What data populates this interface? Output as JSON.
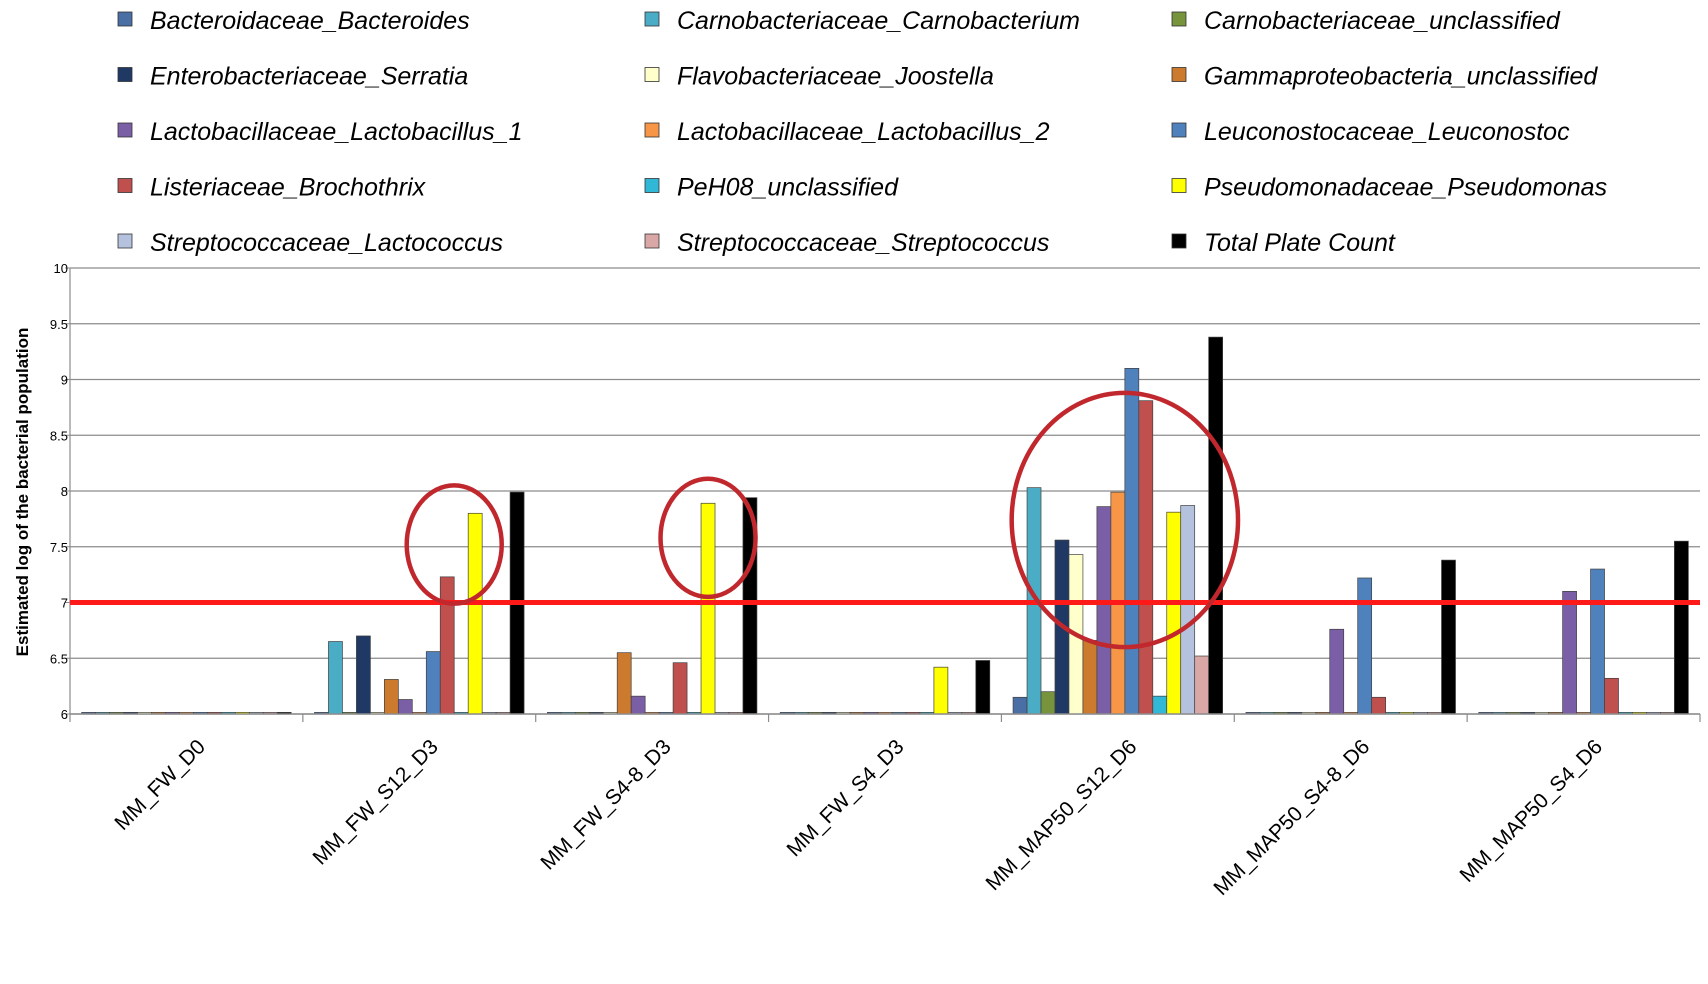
{
  "chart_data": {
    "type": "bar",
    "title": "",
    "xlabel": "",
    "ylabel": "Estimated log of the bacterial population",
    "ylim": [
      6,
      10
    ],
    "yticks": [
      6,
      6.5,
      7,
      7.5,
      8,
      8.5,
      9,
      9.5,
      10
    ],
    "ytick_suffix": "",
    "grid": true,
    "legend_position": "top",
    "threshold": {
      "value": 7,
      "color": "#ff1a1a"
    },
    "categories": [
      "MM_FW_D0",
      "MM_FW_S12_D3",
      "MM_FW_S4-8_D3",
      "MM_FW_S4_D3",
      "MM_MAP50_S12_D6",
      "MM_MAP50_S4-8_D6",
      "MM_MAP50_S4_D6"
    ],
    "series": [
      {
        "name": "Bacteroidaceae_Bacteroides",
        "color": "#4a6fa5",
        "values": [
          6,
          6,
          6,
          6,
          6.15,
          6,
          6
        ]
      },
      {
        "name": "Carnobacteriaceae_Carnobacterium",
        "color": "#4bacc6",
        "values": [
          6,
          6.65,
          6,
          6,
          8.03,
          6,
          6
        ]
      },
      {
        "name": "Carnobacteriaceae_unclassified",
        "color": "#77933c",
        "values": [
          6,
          6,
          6,
          6,
          6.2,
          6,
          6
        ]
      },
      {
        "name": "Enterobacteriaceae_Serratia",
        "color": "#1f3864",
        "values": [
          6,
          6.7,
          6,
          6,
          7.56,
          6,
          6
        ]
      },
      {
        "name": "Flavobacteriaceae_Joostella",
        "color": "#ffffcc",
        "values": [
          6,
          6,
          6,
          6,
          7.43,
          6,
          6
        ]
      },
      {
        "name": "Gammaproteobacteria_unclassified",
        "color": "#cc7a2e",
        "values": [
          6,
          6.31,
          6.55,
          6,
          6.66,
          6,
          6
        ]
      },
      {
        "name": "Lactobacillaceae_Lactobacillus_1",
        "color": "#7b5fa6",
        "values": [
          6,
          6.13,
          6.16,
          6,
          7.86,
          6.76,
          7.1
        ]
      },
      {
        "name": "Lactobacillaceae_Lactobacillus_2",
        "color": "#f79646",
        "values": [
          6,
          6,
          6,
          6,
          7.99,
          6,
          6
        ]
      },
      {
        "name": "Leuconostocaceae_Leuconostoc",
        "color": "#4f81bd",
        "values": [
          6,
          6.56,
          6,
          6,
          9.1,
          7.22,
          7.3
        ]
      },
      {
        "name": "Listeriaceae_Brochothrix",
        "color": "#c0504d",
        "values": [
          6,
          7.23,
          6.46,
          6,
          8.81,
          6.15,
          6.32
        ]
      },
      {
        "name": "PeH08_unclassified",
        "color": "#31b8d6",
        "values": [
          6,
          6,
          6,
          6,
          6.16,
          6,
          6
        ]
      },
      {
        "name": "Pseudomonadaceae_Pseudomonas",
        "color": "#ffff00",
        "values": [
          6,
          7.8,
          7.89,
          6.42,
          7.81,
          6,
          6
        ]
      },
      {
        "name": "Streptococcaceae_Lactococcus",
        "color": "#b4c2de",
        "values": [
          6,
          6,
          6,
          6,
          7.87,
          6,
          6
        ]
      },
      {
        "name": "Streptococcaceae_Streptococcus",
        "color": "#d9a8a6",
        "values": [
          6,
          6,
          6,
          6,
          6.52,
          6,
          6
        ]
      },
      {
        "name": "Total Plate Count",
        "color": "#000000",
        "values": [
          6,
          7.99,
          7.94,
          6.48,
          9.38,
          7.38,
          7.55
        ]
      }
    ],
    "annotations": {
      "circles": [
        {
          "category": "MM_FW_S12_D3",
          "cx_series": 9.5,
          "cy": 7.52,
          "rx_bars": 3.4,
          "ry": 0.53
        },
        {
          "category": "MM_FW_S4-8_D3",
          "cx_series": 11,
          "cy": 7.58,
          "rx_bars": 3.4,
          "ry": 0.53
        },
        {
          "category": "MM_MAP50_S12_D6",
          "cx_series": 7.5,
          "cy": 7.74,
          "rx_bars": 8.1,
          "ry": 1.14
        }
      ],
      "circle_color": "#c0282d"
    }
  }
}
